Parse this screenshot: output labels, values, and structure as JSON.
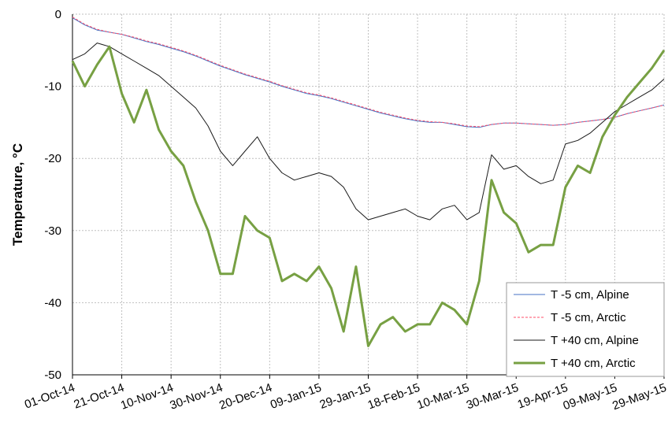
{
  "chart_data": {
    "type": "line",
    "y_label": "Temperature, °C",
    "x": [
      "01-Oct-14",
      "06-Oct-14",
      "11-Oct-14",
      "16-Oct-14",
      "21-Oct-14",
      "26-Oct-14",
      "31-Oct-14",
      "05-Nov-14",
      "10-Nov-14",
      "15-Nov-14",
      "20-Nov-14",
      "25-Nov-14",
      "30-Nov-14",
      "05-Dec-14",
      "10-Dec-14",
      "15-Dec-14",
      "20-Dec-14",
      "25-Dec-14",
      "30-Dec-14",
      "04-Jan-15",
      "09-Jan-15",
      "14-Jan-15",
      "19-Jan-15",
      "24-Jan-15",
      "29-Jan-15",
      "03-Feb-15",
      "08-Feb-15",
      "13-Feb-15",
      "18-Feb-15",
      "23-Feb-15",
      "28-Feb-15",
      "05-Mar-15",
      "10-Mar-15",
      "15-Mar-15",
      "20-Mar-15",
      "25-Mar-15",
      "30-Mar-15",
      "04-Apr-15",
      "09-Apr-15",
      "14-Apr-15",
      "19-Apr-15",
      "24-Apr-15",
      "29-Apr-15",
      "04-May-15",
      "09-May-15",
      "14-May-15",
      "19-May-15",
      "24-May-15",
      "29-May-15"
    ],
    "xlim": [
      "01-Oct-14",
      "29-May-15"
    ],
    "xticks": [
      "01-Oct-14",
      "21-Oct-14",
      "10-Nov-14",
      "30-Nov-14",
      "20-Dec-14",
      "09-Jan-15",
      "29-Jan-15",
      "18-Feb-15",
      "10-Mar-15",
      "30-Mar-15",
      "19-Apr-15",
      "09-May-15",
      "29-May-15"
    ],
    "ylim": [
      -50,
      0
    ],
    "yticks": [
      0,
      -10,
      -20,
      -30,
      -40,
      -50
    ],
    "grid": true,
    "legend": "lower right",
    "series": [
      {
        "name": "T -5 cm, Alpine",
        "color": "#4472c4",
        "line_style": "solid",
        "values": [
          -0.5,
          -1.5,
          -2.2,
          -2.5,
          -2.8,
          -3.3,
          -3.8,
          -4.2,
          -4.7,
          -5.2,
          -5.8,
          -6.5,
          -7.2,
          -7.8,
          -8.4,
          -8.9,
          -9.4,
          -10.0,
          -10.5,
          -11.0,
          -11.3,
          -11.7,
          -12.2,
          -12.7,
          -13.2,
          -13.7,
          -14.1,
          -14.5,
          -14.8,
          -15.0,
          -15.0,
          -15.3,
          -15.6,
          -15.7,
          -15.3,
          -15.1,
          -15.1,
          -15.2,
          -15.3,
          -15.4,
          -15.3,
          -15.0,
          -14.8,
          -14.6,
          -14.3,
          -13.8,
          -13.4,
          -13.0,
          -12.6
        ]
      },
      {
        "name": "T -5 cm, Arctic",
        "color": "#ff4d6a",
        "line_style": "dashed",
        "values": [
          -0.4,
          -1.4,
          -2.1,
          -2.5,
          -2.8,
          -3.2,
          -3.7,
          -4.1,
          -4.6,
          -5.1,
          -5.7,
          -6.4,
          -7.1,
          -7.7,
          -8.3,
          -8.8,
          -9.3,
          -9.9,
          -10.4,
          -10.9,
          -11.2,
          -11.6,
          -12.1,
          -12.6,
          -13.1,
          -13.6,
          -14.0,
          -14.4,
          -14.7,
          -14.9,
          -15.0,
          -15.2,
          -15.5,
          -15.6,
          -15.3,
          -15.1,
          -15.1,
          -15.2,
          -15.3,
          -15.4,
          -15.3,
          -15.0,
          -14.8,
          -14.6,
          -14.3,
          -13.8,
          -13.4,
          -13.0,
          -12.6
        ]
      },
      {
        "name": "T +40 cm, Alpine",
        "color": "#1a1a1a",
        "line_style": "solid",
        "values": [
          -6.3,
          -5.5,
          -4,
          -4.5,
          -5.5,
          -6.5,
          -7.5,
          -8.5,
          -10,
          -11.5,
          -13,
          -15.5,
          -19,
          -21,
          -19,
          -17,
          -20,
          -22,
          -23,
          -22.5,
          -22,
          -22.5,
          -24,
          -27,
          -28.5,
          -28,
          -27.5,
          -27,
          -28,
          -28.5,
          -27,
          -26.5,
          -28.5,
          -27.5,
          -19.5,
          -21.5,
          -21,
          -22.5,
          -23.5,
          -23,
          -18,
          -17.5,
          -16.5,
          -15,
          -13.5,
          -12.5,
          -11.5,
          -10.5,
          -9
        ]
      },
      {
        "name": "T +40 cm, Arctic",
        "color": "#77a043",
        "line_style": "thick",
        "values": [
          -6.5,
          -10,
          -7,
          -4.5,
          -11,
          -15,
          -10.5,
          -16,
          -19,
          -21,
          -26,
          -30,
          -36,
          -36,
          -28,
          -30,
          -31,
          -37,
          -36,
          -37,
          -35,
          -38,
          -44,
          -35,
          -46,
          -43,
          -42,
          -44,
          -43,
          -43,
          -40,
          -41,
          -43,
          -37,
          -23,
          -27.5,
          -29,
          -33,
          -32,
          -32,
          -24,
          -21,
          -22,
          -17,
          -14,
          -11.5,
          -9.5,
          -7.5,
          -5
        ]
      }
    ]
  }
}
